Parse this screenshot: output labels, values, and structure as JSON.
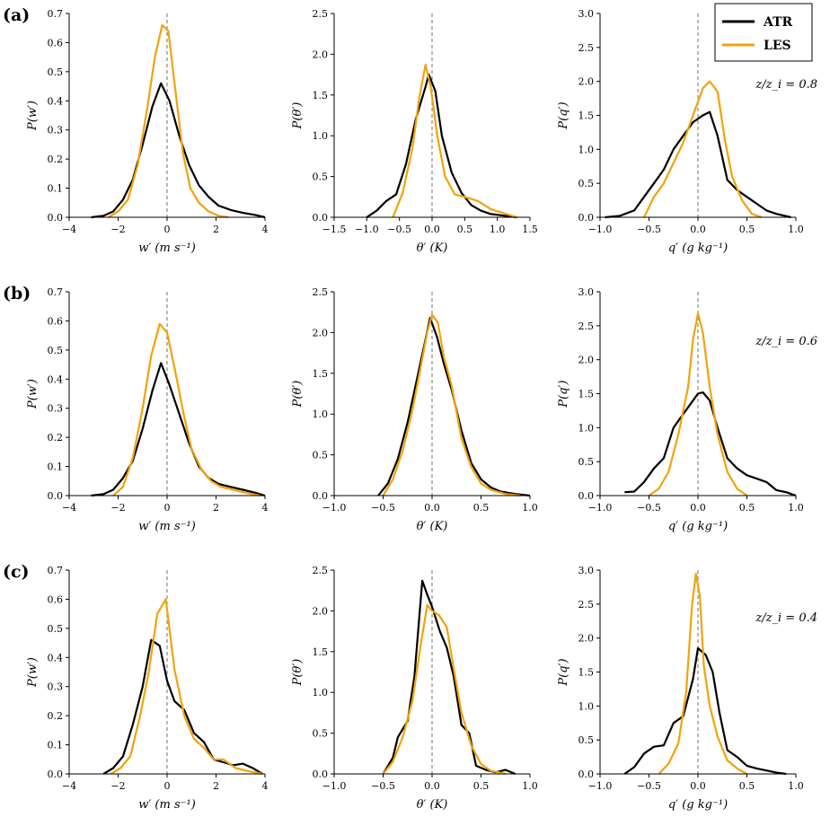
{
  "figure": {
    "row_labels": [
      "(a)",
      "(b)",
      "(c)"
    ],
    "zz_labels": [
      "z/z_i = 0.8",
      "z/z_i = 0.6",
      "z/z_i = 0.4"
    ],
    "legend": [
      {
        "name": "ATR",
        "color": "#000000"
      },
      {
        "name": "LES",
        "color": "#f0a30a"
      }
    ]
  },
  "chart_data": [
    {
      "type": "line",
      "row": "(a)",
      "xlabel": "w′ (m s⁻¹)",
      "ylabel": "P(w′)",
      "xlim": [
        -4,
        4
      ],
      "ylim": [
        0,
        0.7
      ],
      "xticks": [
        -4,
        -2,
        0,
        2,
        4
      ],
      "xtick_labels": [
        "−4",
        "−2",
        "0",
        "2",
        "4"
      ],
      "yticks": [
        0,
        0.1,
        0.2,
        0.3,
        0.4,
        0.5,
        0.6,
        0.7
      ],
      "ytick_labels": [
        "0.0",
        "0.1",
        "0.2",
        "0.3",
        "0.4",
        "0.5",
        "0.6",
        "0.7"
      ],
      "series": [
        {
          "name": "ATR",
          "x": [
            -3.1,
            -2.6,
            -2.2,
            -1.8,
            -1.4,
            -1.0,
            -0.6,
            -0.25,
            0.1,
            0.5,
            0.9,
            1.3,
            1.7,
            2.1,
            2.6,
            3.1,
            3.6,
            4.0
          ],
          "y": [
            0.0,
            0.005,
            0.02,
            0.06,
            0.13,
            0.25,
            0.38,
            0.46,
            0.4,
            0.28,
            0.18,
            0.11,
            0.07,
            0.04,
            0.025,
            0.015,
            0.008,
            0.0
          ]
        },
        {
          "name": "LES",
          "x": [
            -2.4,
            -2.0,
            -1.6,
            -1.2,
            -0.8,
            -0.5,
            -0.2,
            0.05,
            0.35,
            0.65,
            0.95,
            1.3,
            1.7,
            2.1,
            2.5
          ],
          "y": [
            0.0,
            0.02,
            0.06,
            0.18,
            0.38,
            0.55,
            0.66,
            0.64,
            0.43,
            0.22,
            0.1,
            0.05,
            0.02,
            0.005,
            0.0
          ]
        }
      ]
    },
    {
      "type": "line",
      "row": "(a)",
      "xlabel": "θ′ (K)",
      "ylabel": "P(θ′)",
      "xlim": [
        -1.5,
        1.5
      ],
      "ylim": [
        0,
        2.5
      ],
      "xticks": [
        -1.5,
        -1.0,
        -0.5,
        0,
        0.5,
        1.0,
        1.5
      ],
      "xtick_labels": [
        "−1.5",
        "−1.0",
        "−0.5",
        "0.0",
        "0.5",
        "1.0",
        "1.5"
      ],
      "yticks": [
        0,
        0.5,
        1.0,
        1.5,
        2.0,
        2.5
      ],
      "ytick_labels": [
        "0.0",
        "0.5",
        "1.0",
        "1.5",
        "2.0",
        "2.5"
      ],
      "series": [
        {
          "name": "ATR",
          "x": [
            -1.0,
            -0.85,
            -0.7,
            -0.55,
            -0.4,
            -0.25,
            -0.1,
            -0.05,
            0.05,
            0.15,
            0.3,
            0.45,
            0.6,
            0.75,
            0.9,
            1.1,
            1.3
          ],
          "y": [
            0.0,
            0.08,
            0.2,
            0.28,
            0.65,
            1.2,
            1.6,
            1.75,
            1.55,
            1.0,
            0.55,
            0.3,
            0.15,
            0.08,
            0.04,
            0.02,
            0.0
          ]
        },
        {
          "name": "LES",
          "x": [
            -0.6,
            -0.45,
            -0.3,
            -0.2,
            -0.1,
            -0.02,
            0.08,
            0.2,
            0.35,
            0.5,
            0.7,
            0.9,
            1.1,
            1.3
          ],
          "y": [
            0.0,
            0.3,
            0.85,
            1.45,
            1.87,
            1.6,
            1.0,
            0.5,
            0.28,
            0.25,
            0.2,
            0.1,
            0.05,
            0.0
          ]
        }
      ]
    },
    {
      "type": "line",
      "row": "(a)",
      "xlabel": "q′ (g kg⁻¹)",
      "ylabel": "P(q′)",
      "xlim": [
        -1.0,
        1.0
      ],
      "ylim": [
        0,
        3.0
      ],
      "xticks": [
        -1.0,
        -0.5,
        0,
        0.5,
        1.0
      ],
      "xtick_labels": [
        "−1.0",
        "−0.5",
        "0.0",
        "0.5",
        "1.0"
      ],
      "yticks": [
        0,
        0.5,
        1.0,
        1.5,
        2.0,
        2.5,
        3.0
      ],
      "ytick_labels": [
        "0.0",
        "0.5",
        "1.0",
        "1.5",
        "2.0",
        "2.5",
        "3.0"
      ],
      "series": [
        {
          "name": "ATR",
          "x": [
            -0.95,
            -0.8,
            -0.65,
            -0.55,
            -0.45,
            -0.35,
            -0.25,
            -0.15,
            -0.05,
            0.05,
            0.12,
            0.2,
            0.3,
            0.4,
            0.5,
            0.6,
            0.7,
            0.8,
            0.95
          ],
          "y": [
            0.0,
            0.02,
            0.1,
            0.3,
            0.5,
            0.7,
            1.0,
            1.2,
            1.4,
            1.5,
            1.55,
            1.2,
            0.55,
            0.4,
            0.3,
            0.2,
            0.1,
            0.05,
            0.0
          ]
        },
        {
          "name": "LES",
          "x": [
            -0.55,
            -0.45,
            -0.35,
            -0.25,
            -0.15,
            -0.05,
            0.05,
            0.12,
            0.2,
            0.28,
            0.35,
            0.45,
            0.55,
            0.65
          ],
          "y": [
            0.0,
            0.3,
            0.5,
            0.8,
            1.1,
            1.5,
            1.9,
            2.0,
            1.85,
            1.1,
            0.6,
            0.25,
            0.05,
            0.0
          ]
        }
      ]
    },
    {
      "type": "line",
      "row": "(b)",
      "xlabel": "w′ (m s⁻¹)",
      "ylabel": "P(w′)",
      "xlim": [
        -4,
        4
      ],
      "ylim": [
        0,
        0.7
      ],
      "xticks": [
        -4,
        -2,
        0,
        2,
        4
      ],
      "xtick_labels": [
        "−4",
        "−2",
        "0",
        "2",
        "4"
      ],
      "yticks": [
        0,
        0.1,
        0.2,
        0.3,
        0.4,
        0.5,
        0.6,
        0.7
      ],
      "ytick_labels": [
        "0.0",
        "0.1",
        "0.2",
        "0.3",
        "0.4",
        "0.5",
        "0.6",
        "0.7"
      ],
      "series": [
        {
          "name": "ATR",
          "x": [
            -3.1,
            -2.6,
            -2.2,
            -1.8,
            -1.4,
            -1.0,
            -0.6,
            -0.25,
            0.1,
            0.5,
            0.9,
            1.3,
            1.7,
            2.1,
            2.6,
            3.1,
            3.6,
            4.0
          ],
          "y": [
            0.0,
            0.005,
            0.02,
            0.06,
            0.12,
            0.23,
            0.36,
            0.455,
            0.38,
            0.28,
            0.18,
            0.1,
            0.06,
            0.04,
            0.03,
            0.02,
            0.01,
            0.0
          ]
        },
        {
          "name": "LES",
          "x": [
            -2.2,
            -1.8,
            -1.4,
            -1.0,
            -0.65,
            -0.3,
            0.0,
            0.35,
            0.7,
            1.0,
            1.4,
            1.8,
            2.2,
            2.7,
            3.2,
            3.8
          ],
          "y": [
            0.0,
            0.03,
            0.13,
            0.3,
            0.48,
            0.59,
            0.56,
            0.42,
            0.27,
            0.16,
            0.09,
            0.05,
            0.03,
            0.02,
            0.01,
            0.0
          ]
        }
      ]
    },
    {
      "type": "line",
      "row": "(b)",
      "xlabel": "θ′ (K)",
      "ylabel": "P(θ′)",
      "xlim": [
        -1.0,
        1.0
      ],
      "ylim": [
        0,
        2.5
      ],
      "xticks": [
        -1.0,
        -0.5,
        0,
        0.5,
        1.0
      ],
      "xtick_labels": [
        "−1.0",
        "−0.5",
        "0.0",
        "0.5",
        "1.0"
      ],
      "yticks": [
        0,
        0.5,
        1.0,
        1.5,
        2.0,
        2.5
      ],
      "ytick_labels": [
        "0.0",
        "0.5",
        "1.0",
        "1.5",
        "2.0",
        "2.5"
      ],
      "series": [
        {
          "name": "ATR",
          "x": [
            -0.55,
            -0.45,
            -0.35,
            -0.25,
            -0.15,
            -0.07,
            -0.02,
            0.05,
            0.12,
            0.2,
            0.3,
            0.4,
            0.5,
            0.6,
            0.7,
            0.85,
            1.0
          ],
          "y": [
            0.0,
            0.15,
            0.45,
            0.9,
            1.45,
            1.9,
            2.18,
            1.95,
            1.62,
            1.3,
            0.8,
            0.4,
            0.2,
            0.1,
            0.05,
            0.02,
            0.0
          ]
        },
        {
          "name": "LES",
          "x": [
            -0.5,
            -0.4,
            -0.3,
            -0.2,
            -0.12,
            -0.05,
            0.0,
            0.06,
            0.12,
            0.2,
            0.3,
            0.4,
            0.5,
            0.6,
            0.75,
            0.9
          ],
          "y": [
            0.0,
            0.2,
            0.55,
            1.05,
            1.55,
            2.0,
            2.22,
            2.12,
            1.7,
            1.35,
            0.7,
            0.35,
            0.15,
            0.07,
            0.02,
            0.0
          ]
        }
      ]
    },
    {
      "type": "line",
      "row": "(b)",
      "xlabel": "q′ (g kg⁻¹)",
      "ylabel": "P(q′)",
      "xlim": [
        -1.0,
        1.0
      ],
      "ylim": [
        0,
        3.0
      ],
      "xticks": [
        -1.0,
        -0.5,
        0,
        0.5,
        1.0
      ],
      "xtick_labels": [
        "−1.0",
        "−0.5",
        "0.0",
        "0.5",
        "1.0"
      ],
      "yticks": [
        0,
        0.5,
        1.0,
        1.5,
        2.0,
        2.5,
        3.0
      ],
      "ytick_labels": [
        "0.0",
        "0.5",
        "1.0",
        "1.5",
        "2.0",
        "2.5",
        "3.0"
      ],
      "series": [
        {
          "name": "ATR",
          "x": [
            -0.75,
            -0.65,
            -0.55,
            -0.45,
            -0.35,
            -0.25,
            -0.15,
            -0.05,
            0.0,
            0.05,
            0.12,
            0.2,
            0.3,
            0.4,
            0.5,
            0.6,
            0.7,
            0.8,
            0.9,
            1.0
          ],
          "y": [
            0.05,
            0.06,
            0.2,
            0.4,
            0.55,
            1.0,
            1.2,
            1.4,
            1.5,
            1.52,
            1.4,
            1.0,
            0.55,
            0.4,
            0.3,
            0.25,
            0.2,
            0.08,
            0.05,
            0.0
          ]
        },
        {
          "name": "LES",
          "x": [
            -0.5,
            -0.4,
            -0.3,
            -0.2,
            -0.1,
            -0.05,
            0.0,
            0.05,
            0.12,
            0.2,
            0.3,
            0.4,
            0.5
          ],
          "y": [
            0.0,
            0.1,
            0.35,
            0.9,
            1.6,
            2.3,
            2.68,
            2.4,
            1.6,
            0.9,
            0.35,
            0.1,
            0.0
          ]
        }
      ]
    },
    {
      "type": "line",
      "row": "(c)",
      "xlabel": "w′ (m s⁻¹)",
      "ylabel": "P(w′)",
      "xlim": [
        -4,
        4
      ],
      "ylim": [
        0,
        0.7
      ],
      "xticks": [
        -4,
        -2,
        0,
        2,
        4
      ],
      "xtick_labels": [
        "−4",
        "−2",
        "0",
        "2",
        "4"
      ],
      "yticks": [
        0,
        0.1,
        0.2,
        0.3,
        0.4,
        0.5,
        0.6,
        0.7
      ],
      "ytick_labels": [
        "0.0",
        "0.1",
        "0.2",
        "0.3",
        "0.4",
        "0.5",
        "0.6",
        "0.7"
      ],
      "series": [
        {
          "name": "ATR",
          "x": [
            -2.6,
            -2.2,
            -1.8,
            -1.4,
            -1.0,
            -0.65,
            -0.3,
            0.0,
            0.3,
            0.7,
            1.1,
            1.5,
            1.9,
            2.3,
            2.7,
            3.1,
            3.5,
            3.9
          ],
          "y": [
            0.0,
            0.02,
            0.06,
            0.17,
            0.3,
            0.46,
            0.44,
            0.32,
            0.25,
            0.22,
            0.14,
            0.11,
            0.05,
            0.04,
            0.03,
            0.035,
            0.02,
            0.0
          ]
        },
        {
          "name": "LES",
          "x": [
            -2.3,
            -1.9,
            -1.5,
            -1.1,
            -0.75,
            -0.4,
            -0.05,
            0.3,
            0.7,
            1.1,
            1.5,
            1.9,
            2.3,
            2.8,
            3.3,
            3.9
          ],
          "y": [
            0.0,
            0.02,
            0.06,
            0.2,
            0.35,
            0.55,
            0.6,
            0.36,
            0.2,
            0.12,
            0.09,
            0.05,
            0.05,
            0.02,
            0.01,
            0.0
          ]
        }
      ]
    },
    {
      "type": "line",
      "row": "(c)",
      "xlabel": "θ′ (K)",
      "ylabel": "P(θ′)",
      "xlim": [
        -1.0,
        1.0
      ],
      "ylim": [
        0,
        2.5
      ],
      "xticks": [
        -1.0,
        -0.5,
        0,
        0.5,
        1.0
      ],
      "xtick_labels": [
        "−1.0",
        "−0.5",
        "0.0",
        "0.5",
        "1.0"
      ],
      "yticks": [
        0,
        0.5,
        1.0,
        1.5,
        2.0,
        2.5
      ],
      "ytick_labels": [
        "0.0",
        "0.5",
        "1.0",
        "1.5",
        "2.0",
        "2.5"
      ],
      "series": [
        {
          "name": "ATR",
          "x": [
            -0.5,
            -0.4,
            -0.35,
            -0.25,
            -0.18,
            -0.1,
            -0.05,
            0.0,
            0.08,
            0.15,
            0.22,
            0.3,
            0.38,
            0.45,
            0.55,
            0.65,
            0.75,
            0.85
          ],
          "y": [
            0.0,
            0.2,
            0.45,
            0.65,
            1.2,
            2.37,
            2.2,
            2.05,
            1.75,
            1.55,
            1.2,
            0.6,
            0.5,
            0.1,
            0.05,
            0.02,
            0.05,
            0.0
          ]
        },
        {
          "name": "LES",
          "x": [
            -0.5,
            -0.4,
            -0.3,
            -0.2,
            -0.12,
            -0.05,
            0.0,
            0.07,
            0.15,
            0.22,
            0.3,
            0.4,
            0.5,
            0.6,
            0.75
          ],
          "y": [
            0.0,
            0.15,
            0.45,
            0.9,
            1.55,
            2.07,
            2.0,
            1.95,
            1.8,
            1.3,
            0.75,
            0.35,
            0.12,
            0.04,
            0.0
          ]
        }
      ]
    },
    {
      "type": "line",
      "row": "(c)",
      "xlabel": "q′ (g kg⁻¹)",
      "ylabel": "P(q′)",
      "xlim": [
        -1.0,
        1.0
      ],
      "ylim": [
        0,
        3.0
      ],
      "xticks": [
        -1.0,
        -0.5,
        0,
        0.5,
        1.0
      ],
      "xtick_labels": [
        "−1.0",
        "−0.5",
        "0.0",
        "0.5",
        "1.0"
      ],
      "yticks": [
        0,
        0.5,
        1.0,
        1.5,
        2.0,
        2.5,
        3.0
      ],
      "ytick_labels": [
        "0.0",
        "0.5",
        "1.0",
        "1.5",
        "2.0",
        "2.5",
        "3.0"
      ],
      "series": [
        {
          "name": "ATR",
          "x": [
            -0.75,
            -0.65,
            -0.55,
            -0.45,
            -0.35,
            -0.25,
            -0.15,
            -0.05,
            0.0,
            0.08,
            0.15,
            0.22,
            0.3,
            0.4,
            0.5,
            0.6,
            0.7,
            0.8,
            0.9
          ],
          "y": [
            0.0,
            0.1,
            0.3,
            0.4,
            0.42,
            0.75,
            0.85,
            1.4,
            1.85,
            1.75,
            1.5,
            0.9,
            0.35,
            0.25,
            0.12,
            0.08,
            0.05,
            0.02,
            0.0
          ]
        },
        {
          "name": "LES",
          "x": [
            -0.4,
            -0.3,
            -0.2,
            -0.12,
            -0.06,
            -0.02,
            0.02,
            0.06,
            0.12,
            0.2,
            0.3,
            0.4,
            0.5
          ],
          "y": [
            0.0,
            0.15,
            0.45,
            1.2,
            2.5,
            2.95,
            2.6,
            1.6,
            1.0,
            0.55,
            0.2,
            0.08,
            0.0
          ]
        }
      ]
    }
  ]
}
